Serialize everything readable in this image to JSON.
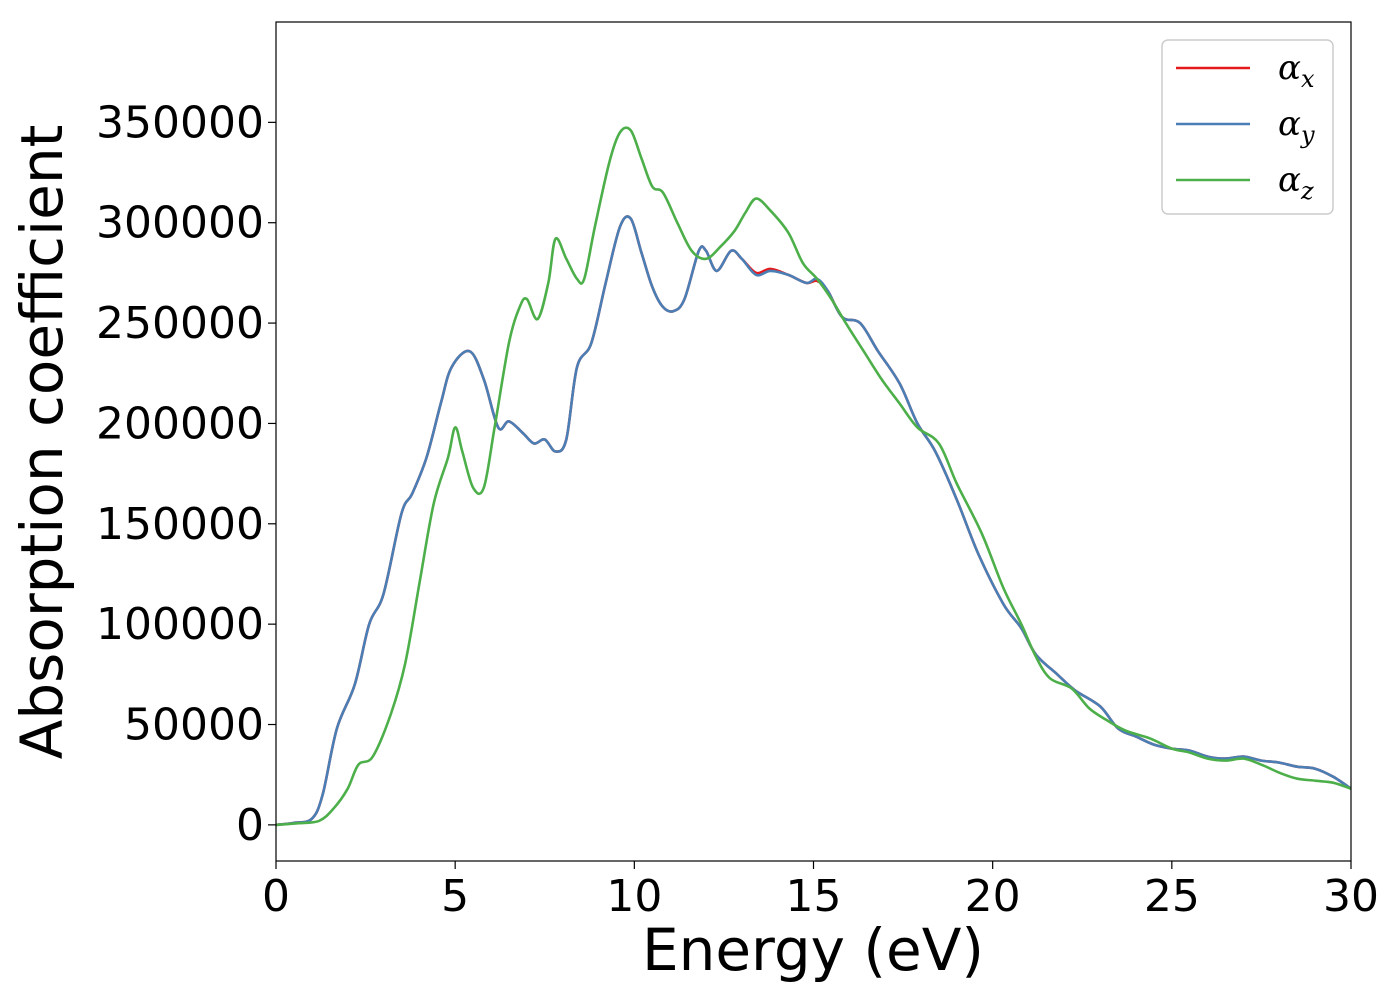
{
  "chart_data": {
    "type": "line",
    "xlabel": "Energy (eV)",
    "ylabel": "Absorption coefficient",
    "xlim": [
      0,
      30
    ],
    "ylim": [
      -18000,
      400000
    ],
    "xticks": [
      0,
      5,
      10,
      15,
      20,
      25,
      30
    ],
    "xtick_labels": [
      "0",
      "5",
      "10",
      "15",
      "20",
      "25",
      "30"
    ],
    "yticks": [
      0,
      50000,
      100000,
      150000,
      200000,
      250000,
      300000,
      350000
    ],
    "ytick_labels": [
      "0",
      "50000",
      "100000",
      "150000",
      "200000",
      "250000",
      "300000",
      "350000"
    ],
    "grid": false,
    "legend_position": "top-right",
    "series": [
      {
        "name": "α",
        "subscript": "x",
        "color": "#e41a1c",
        "points": [
          [
            0,
            0
          ],
          [
            0.5,
            1000
          ],
          [
            1,
            3000
          ],
          [
            1.3,
            15000
          ],
          [
            1.7,
            48000
          ],
          [
            2.2,
            70000
          ],
          [
            2.6,
            100000
          ],
          [
            3,
            115000
          ],
          [
            3.5,
            155000
          ],
          [
            3.8,
            165000
          ],
          [
            4.2,
            183000
          ],
          [
            4.6,
            210000
          ],
          [
            4.9,
            228000
          ],
          [
            5.4,
            236000
          ],
          [
            5.8,
            222000
          ],
          [
            6.2,
            198000
          ],
          [
            6.5,
            201000
          ],
          [
            6.9,
            195000
          ],
          [
            7.2,
            190000
          ],
          [
            7.5,
            192000
          ],
          [
            7.8,
            186000
          ],
          [
            8.1,
            192000
          ],
          [
            8.4,
            228000
          ],
          [
            8.8,
            240000
          ],
          [
            9.2,
            270000
          ],
          [
            9.6,
            298000
          ],
          [
            9.9,
            302000
          ],
          [
            10.2,
            285000
          ],
          [
            10.5,
            268000
          ],
          [
            10.8,
            258000
          ],
          [
            11.1,
            256000
          ],
          [
            11.4,
            262000
          ],
          [
            11.8,
            286000
          ],
          [
            12.0,
            286000
          ],
          [
            12.3,
            276000
          ],
          [
            12.7,
            286000
          ],
          [
            13.0,
            282000
          ],
          [
            13.4,
            275000
          ],
          [
            13.8,
            277000
          ],
          [
            14.3,
            274000
          ],
          [
            14.8,
            270000
          ],
          [
            15.1,
            271000
          ],
          [
            15.4,
            266000
          ],
          [
            15.8,
            253000
          ],
          [
            16.3,
            250000
          ],
          [
            16.8,
            236000
          ],
          [
            17.4,
            220000
          ],
          [
            17.9,
            200000
          ],
          [
            18.4,
            186000
          ],
          [
            19.0,
            162000
          ],
          [
            19.6,
            135000
          ],
          [
            20.3,
            110000
          ],
          [
            20.8,
            98000
          ],
          [
            21.2,
            85000
          ],
          [
            21.8,
            75000
          ],
          [
            22.3,
            67000
          ],
          [
            23.0,
            59000
          ],
          [
            23.5,
            48000
          ],
          [
            24.0,
            44000
          ],
          [
            24.5,
            40000
          ],
          [
            25.0,
            38000
          ],
          [
            25.5,
            37000
          ],
          [
            26.0,
            34000
          ],
          [
            26.5,
            33000
          ],
          [
            27.0,
            34000
          ],
          [
            27.5,
            32000
          ],
          [
            28.0,
            31000
          ],
          [
            28.5,
            29000
          ],
          [
            29.0,
            28000
          ],
          [
            29.5,
            24000
          ],
          [
            30.0,
            18000
          ]
        ]
      },
      {
        "name": "α",
        "subscript": "y",
        "color": "#4a7fb5",
        "points": [
          [
            0,
            0
          ],
          [
            0.5,
            1000
          ],
          [
            1,
            3000
          ],
          [
            1.3,
            15000
          ],
          [
            1.7,
            48000
          ],
          [
            2.2,
            70000
          ],
          [
            2.6,
            100000
          ],
          [
            3,
            115000
          ],
          [
            3.5,
            155000
          ],
          [
            3.8,
            165000
          ],
          [
            4.2,
            183000
          ],
          [
            4.6,
            210000
          ],
          [
            4.9,
            228000
          ],
          [
            5.4,
            236000
          ],
          [
            5.8,
            222000
          ],
          [
            6.2,
            198000
          ],
          [
            6.5,
            201000
          ],
          [
            6.9,
            195000
          ],
          [
            7.2,
            190000
          ],
          [
            7.5,
            192000
          ],
          [
            7.8,
            186000
          ],
          [
            8.1,
            192000
          ],
          [
            8.4,
            228000
          ],
          [
            8.8,
            240000
          ],
          [
            9.2,
            270000
          ],
          [
            9.6,
            298000
          ],
          [
            9.9,
            302000
          ],
          [
            10.2,
            285000
          ],
          [
            10.5,
            268000
          ],
          [
            10.8,
            258000
          ],
          [
            11.1,
            256000
          ],
          [
            11.4,
            262000
          ],
          [
            11.8,
            286000
          ],
          [
            12.0,
            286000
          ],
          [
            12.3,
            276000
          ],
          [
            12.7,
            286000
          ],
          [
            13.0,
            282000
          ],
          [
            13.4,
            274000
          ],
          [
            13.8,
            276000
          ],
          [
            14.3,
            274000
          ],
          [
            14.8,
            270000
          ],
          [
            15.1,
            272000
          ],
          [
            15.4,
            266000
          ],
          [
            15.8,
            253000
          ],
          [
            16.3,
            250000
          ],
          [
            16.8,
            236000
          ],
          [
            17.4,
            220000
          ],
          [
            17.9,
            200000
          ],
          [
            18.4,
            186000
          ],
          [
            19.0,
            162000
          ],
          [
            19.6,
            135000
          ],
          [
            20.3,
            110000
          ],
          [
            20.8,
            98000
          ],
          [
            21.2,
            85000
          ],
          [
            21.8,
            75000
          ],
          [
            22.3,
            67000
          ],
          [
            23.0,
            59000
          ],
          [
            23.5,
            48000
          ],
          [
            24.0,
            44000
          ],
          [
            24.5,
            40000
          ],
          [
            25.0,
            38000
          ],
          [
            25.5,
            37000
          ],
          [
            26.0,
            34000
          ],
          [
            26.5,
            33000
          ],
          [
            27.0,
            34000
          ],
          [
            27.5,
            32000
          ],
          [
            28.0,
            31000
          ],
          [
            28.5,
            29000
          ],
          [
            29.0,
            28000
          ],
          [
            29.5,
            24000
          ],
          [
            30.0,
            18000
          ]
        ]
      },
      {
        "name": "α",
        "subscript": "z",
        "color": "#4daf4a",
        "points": [
          [
            0,
            0
          ],
          [
            0.6,
            800
          ],
          [
            1.2,
            2000
          ],
          [
            1.6,
            8000
          ],
          [
            2.0,
            18000
          ],
          [
            2.3,
            30000
          ],
          [
            2.7,
            34000
          ],
          [
            3.2,
            55000
          ],
          [
            3.6,
            80000
          ],
          [
            4.0,
            120000
          ],
          [
            4.4,
            160000
          ],
          [
            4.8,
            183000
          ],
          [
            5.0,
            198000
          ],
          [
            5.2,
            186000
          ],
          [
            5.5,
            168000
          ],
          [
            5.8,
            168000
          ],
          [
            6.1,
            198000
          ],
          [
            6.5,
            240000
          ],
          [
            6.8,
            258000
          ],
          [
            7.0,
            262000
          ],
          [
            7.3,
            252000
          ],
          [
            7.6,
            270000
          ],
          [
            7.8,
            292000
          ],
          [
            8.1,
            282000
          ],
          [
            8.4,
            272000
          ],
          [
            8.6,
            272000
          ],
          [
            8.9,
            298000
          ],
          [
            9.3,
            330000
          ],
          [
            9.6,
            345000
          ],
          [
            9.9,
            346000
          ],
          [
            10.2,
            332000
          ],
          [
            10.5,
            318000
          ],
          [
            10.8,
            315000
          ],
          [
            11.2,
            300000
          ],
          [
            11.6,
            286000
          ],
          [
            12.0,
            282000
          ],
          [
            12.4,
            288000
          ],
          [
            12.8,
            296000
          ],
          [
            13.1,
            305000
          ],
          [
            13.4,
            312000
          ],
          [
            13.8,
            306000
          ],
          [
            14.3,
            295000
          ],
          [
            14.7,
            280000
          ],
          [
            15.1,
            272000
          ],
          [
            15.5,
            262000
          ],
          [
            15.9,
            250000
          ],
          [
            16.4,
            236000
          ],
          [
            16.9,
            222000
          ],
          [
            17.4,
            210000
          ],
          [
            17.9,
            198000
          ],
          [
            18.5,
            190000
          ],
          [
            19.0,
            170000
          ],
          [
            19.7,
            145000
          ],
          [
            20.3,
            118000
          ],
          [
            20.8,
            100000
          ],
          [
            21.2,
            84000
          ],
          [
            21.6,
            73000
          ],
          [
            22.2,
            68000
          ],
          [
            22.7,
            58000
          ],
          [
            23.2,
            52000
          ],
          [
            23.7,
            47000
          ],
          [
            24.4,
            43000
          ],
          [
            25.0,
            38000
          ],
          [
            25.5,
            36000
          ],
          [
            26.0,
            33000
          ],
          [
            26.5,
            32000
          ],
          [
            27.0,
            33000
          ],
          [
            27.5,
            30000
          ],
          [
            28.0,
            26000
          ],
          [
            28.5,
            23000
          ],
          [
            29.0,
            22000
          ],
          [
            29.5,
            21000
          ],
          [
            30.0,
            18000
          ]
        ]
      }
    ]
  }
}
